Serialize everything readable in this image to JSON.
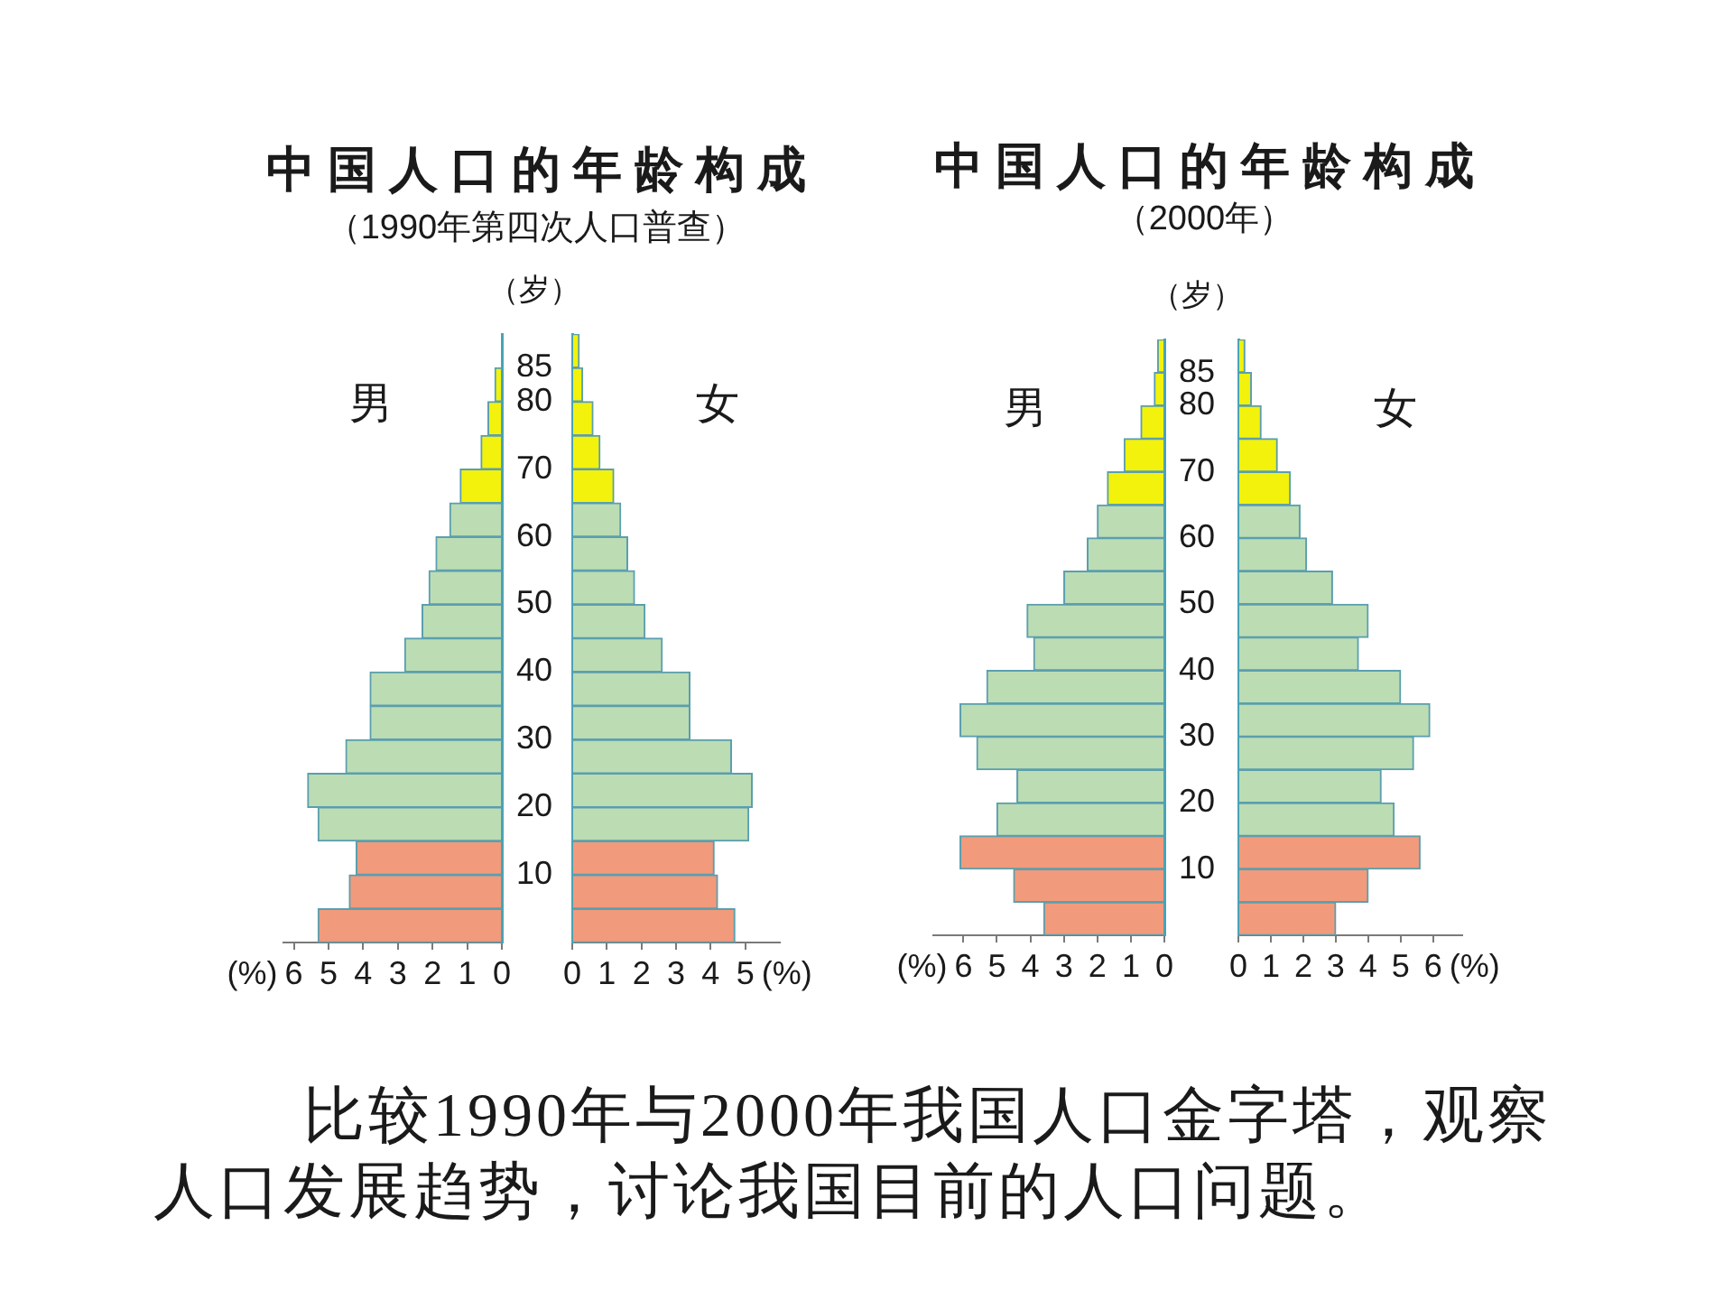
{
  "chart_data": [
    {
      "type": "histogram",
      "orientation": "horizontal",
      "title": "中国人口的年龄构成",
      "subtitle": "（1990年第四次人口普查）",
      "xlabel": "(%)",
      "ylabel": "（岁）",
      "bins": [
        0,
        5,
        10,
        15,
        20,
        25,
        30,
        35,
        40,
        45,
        50,
        55,
        60,
        65,
        70,
        75,
        80,
        85,
        90
      ],
      "series": [
        {
          "name": "男",
          "colors": [
            "#f29a7c",
            "#f29a7c",
            "#f29a7c",
            "#bcdcb4",
            "#bcdcb4",
            "#bcdcb4",
            "#bcdcb4",
            "#bcdcb4",
            "#bcdcb4",
            "#bcdcb4",
            "#bcdcb4",
            "#bcdcb4",
            "#bcdcb4",
            "#f2f20c",
            "#f2f20c",
            "#f2f20c",
            "#f2f20c",
            "#f2f20c"
          ],
          "values": [
            5.3,
            4.4,
            4.2,
            5.3,
            5.6,
            4.5,
            3.8,
            3.8,
            2.8,
            2.3,
            2.1,
            1.9,
            1.5,
            1.2,
            0.6,
            0.4,
            0.2,
            null
          ]
        }
      ],
      "xlim": [
        6.3,
        0
      ],
      "xticks": [
        6,
        5,
        4,
        3,
        2,
        1,
        0
      ],
      "ylim": [
        0,
        90
      ],
      "yticks": [
        10,
        20,
        30,
        40,
        50,
        60,
        70,
        80,
        85
      ]
    },
    {
      "type": "histogram",
      "orientation": "horizontal",
      "xlabel": "(%)",
      "bins": [
        0,
        5,
        10,
        15,
        20,
        25,
        30,
        35,
        40,
        45,
        50,
        55,
        60,
        65,
        70,
        75,
        80,
        85,
        90
      ],
      "series": [
        {
          "name": "女",
          "colors": [
            "#f29a7c",
            "#f29a7c",
            "#f29a7c",
            "#bcdcb4",
            "#bcdcb4",
            "#bcdcb4",
            "#bcdcb4",
            "#bcdcb4",
            "#bcdcb4",
            "#bcdcb4",
            "#bcdcb4",
            "#bcdcb4",
            "#bcdcb4",
            "#f2f20c",
            "#f2f20c",
            "#f2f20c",
            "#f2f20c",
            "#f2f20c"
          ],
          "values": [
            4.7,
            4.2,
            4.1,
            5.1,
            5.2,
            4.6,
            3.4,
            3.4,
            2.6,
            2.1,
            1.8,
            1.6,
            1.4,
            1.2,
            0.8,
            0.6,
            0.3,
            0.2
          ]
        }
      ],
      "xlim": [
        0,
        6
      ],
      "xticks": [
        0,
        1,
        2,
        3,
        4,
        5
      ],
      "ylim": [
        0,
        90
      ],
      "tick_labels": "x"
    },
    {
      "type": "histogram",
      "orientation": "horizontal",
      "title": "中国人口的年龄构成",
      "subtitle": "（2000年）",
      "xlabel": "(%)",
      "ylabel": "（岁）",
      "bins": [
        0,
        5,
        10,
        15,
        20,
        25,
        30,
        35,
        40,
        45,
        50,
        55,
        60,
        65,
        70,
        75,
        80,
        85,
        90
      ],
      "series": [
        {
          "name": "男",
          "colors": [
            "#f29a7c",
            "#f29a7c",
            "#f29a7c",
            "#bcdcb4",
            "#bcdcb4",
            "#bcdcb4",
            "#bcdcb4",
            "#bcdcb4",
            "#bcdcb4",
            "#bcdcb4",
            "#bcdcb4",
            "#bcdcb4",
            "#bcdcb4",
            "#f2f20c",
            "#f2f20c",
            "#f2f20c",
            "#f2f20c",
            "#f2f20c"
          ],
          "values": [
            3.6,
            4.5,
            6.1,
            5.0,
            4.4,
            5.6,
            6.1,
            5.3,
            3.9,
            4.1,
            3.0,
            2.3,
            2.0,
            1.7,
            1.2,
            0.7,
            0.3,
            0.2
          ]
        }
      ],
      "xlim": [
        6.9,
        0
      ],
      "xticks": [
        6,
        5,
        4,
        3,
        2,
        1,
        0
      ],
      "ylim": [
        0,
        90
      ],
      "yticks": [
        10,
        20,
        30,
        40,
        50,
        60,
        70,
        80,
        85
      ]
    },
    {
      "type": "histogram",
      "orientation": "horizontal",
      "xlabel": "(%)",
      "bins": [
        0,
        5,
        10,
        15,
        20,
        25,
        30,
        35,
        40,
        45,
        50,
        55,
        60,
        65,
        70,
        75,
        80,
        85,
        90
      ],
      "series": [
        {
          "name": "女",
          "colors": [
            "#f29a7c",
            "#f29a7c",
            "#f29a7c",
            "#bcdcb4",
            "#bcdcb4",
            "#bcdcb4",
            "#bcdcb4",
            "#bcdcb4",
            "#bcdcb4",
            "#bcdcb4",
            "#bcdcb4",
            "#bcdcb4",
            "#bcdcb4",
            "#f2f20c",
            "#f2f20c",
            "#f2f20c",
            "#f2f20c",
            "#f2f20c"
          ],
          "values": [
            3.0,
            4.0,
            5.6,
            4.8,
            4.4,
            5.4,
            5.9,
            5.0,
            3.7,
            4.0,
            2.9,
            2.1,
            1.9,
            1.6,
            1.2,
            0.7,
            0.4,
            0.2
          ]
        }
      ],
      "xlim": [
        0,
        6.9
      ],
      "xticks": [
        0,
        1,
        2,
        3,
        4,
        5,
        6
      ],
      "ylim": [
        0,
        90
      ],
      "tick_labels": "x",
      "annotations": [
        "比较1990年与2000年我国人口金字塔，观察人口发展趋势，讨论我国目前的人口问题。"
      ]
    }
  ]
}
